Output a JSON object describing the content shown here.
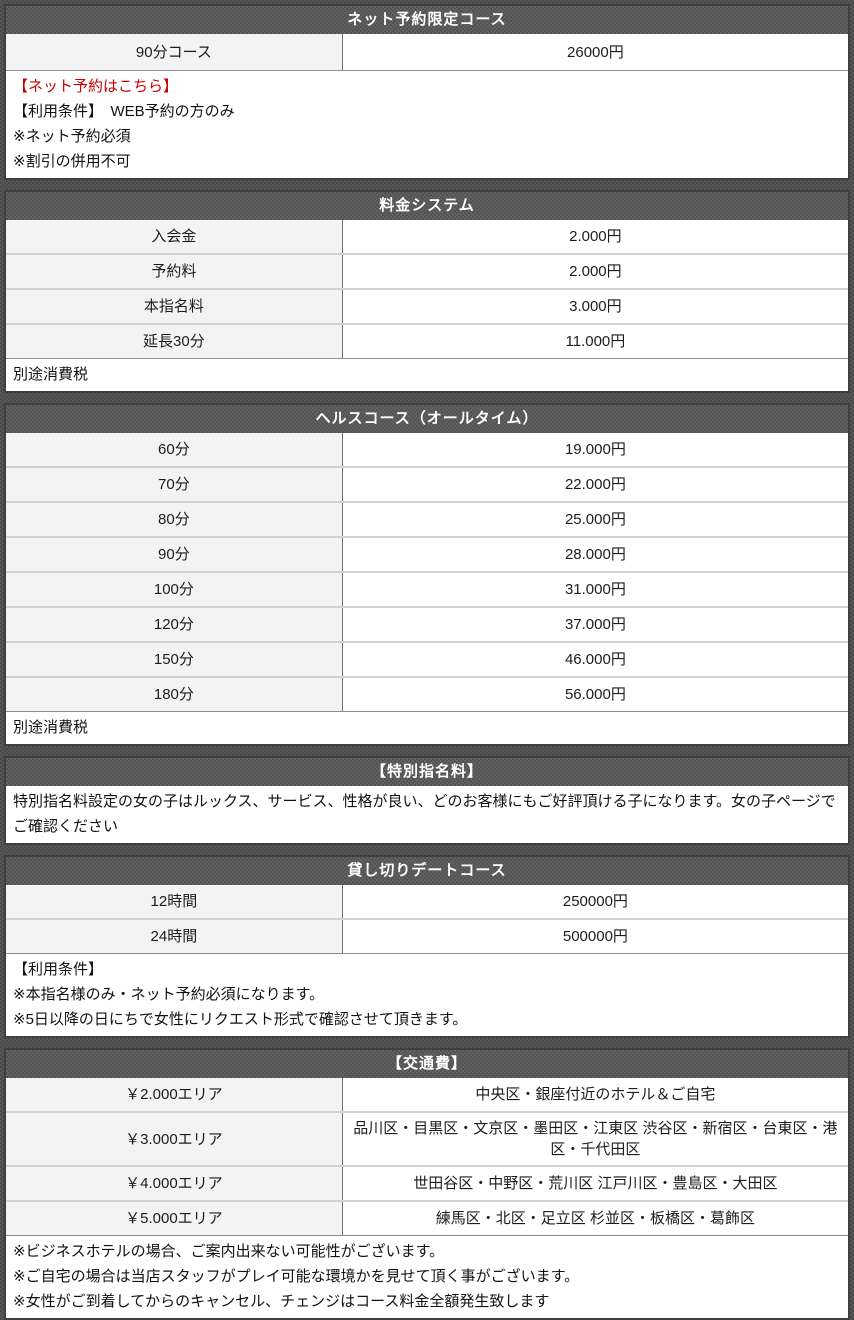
{
  "colors": {
    "header_bg": "#595959",
    "header_text": "#ffffff",
    "label_cell_bg": "#f3f3f3",
    "value_cell_bg": "#ffffff",
    "accent_red": "#cc0000",
    "table_border": "#3f3f3f",
    "page_texture_base": "#4f4f4f"
  },
  "sections": [
    {
      "title": "ネット予約限定コース",
      "rows": [
        {
          "label": "90分コース",
          "value": "26000円"
        }
      ],
      "notes": [
        {
          "text": "【ネット予約はこちら】"
        },
        {
          "text": "【利用条件】　WEB予約の方のみ"
        },
        {
          "text": "※ネット予約必須"
        },
        {
          "text": "※割引の併用不可"
        }
      ]
    },
    {
      "title": "料金システム",
      "rows": [
        {
          "label": "入会金",
          "value": "2.000円"
        },
        {
          "label": "予約料",
          "value": "2.000円"
        },
        {
          "label": "本指名料",
          "value": "3.000円"
        },
        {
          "label": "延長30分",
          "value": "11.000円"
        }
      ],
      "notes": [
        {
          "text": "別途消費税"
        }
      ]
    },
    {
      "title": "ヘルスコース（オールタイム）",
      "rows": [
        {
          "label": "60分",
          "value": "19.000円"
        },
        {
          "label": "70分",
          "value": "22.000円"
        },
        {
          "label": "80分",
          "value": "25.000円"
        },
        {
          "label": "90分",
          "value": "28.000円"
        },
        {
          "label": "100分",
          "value": "31.000円"
        },
        {
          "label": "120分",
          "value": "37.000円"
        },
        {
          "label": "150分",
          "value": "46.000円"
        },
        {
          "label": "180分",
          "value": "56.000円"
        }
      ],
      "notes": [
        {
          "text": "別途消費税"
        }
      ]
    },
    {
      "title": "【特別指名料】",
      "rows": [],
      "notes": [
        {
          "text": "特別指名料設定の女の子はルックス、サービス、性格が良い、どのお客様にもご好評頂ける子になります。女の子ページでご確認ください"
        }
      ]
    },
    {
      "title": "貸し切りデートコース",
      "rows": [
        {
          "label": "12時間",
          "value": "250000円"
        },
        {
          "label": "24時間",
          "value": "500000円"
        }
      ],
      "notes": [
        {
          "text": "【利用条件】"
        },
        {
          "text": "※本指名様のみ・ネット予約必須になります。"
        },
        {
          "text": "※5日以降の日にちで女性にリクエスト形式で確認させて頂きます。"
        }
      ]
    },
    {
      "title": "【交通費】",
      "rows": [
        {
          "label": "￥2.000エリア",
          "value": "中央区・銀座付近のホテル＆ご自宅"
        },
        {
          "label": "￥3.000エリア",
          "value": "品川区・目黒区・文京区・墨田区・江東区 渋谷区・新宿区・台東区・港区・千代田区"
        },
        {
          "label": "￥4.000エリア",
          "value": "世田谷区・中野区・荒川区 江戸川区・豊島区・大田区"
        },
        {
          "label": "￥5.000エリア",
          "value": "練馬区・北区・足立区 杉並区・板橋区・葛飾区"
        }
      ],
      "notes": [
        {
          "text": "※ビジネスホテルの場合、ご案内出来ない可能性がございます。"
        },
        {
          "text": "※ご自宅の場合は当店スタッフがプレイ可能な環境かを見せて頂く事がございます。"
        },
        {
          "text": "※女性がご到着してからのキャンセル、チェンジはコース料金全額発生致します"
        }
      ]
    }
  ]
}
